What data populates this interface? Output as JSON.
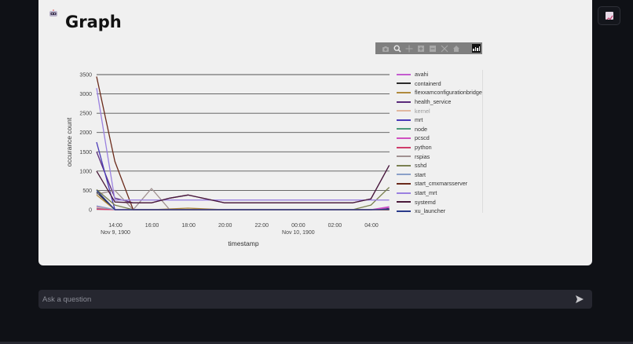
{
  "header": {
    "title": "Graph",
    "bot_icon": "robot-avatar-icon"
  },
  "modebar": {
    "buttons": [
      "camera-icon",
      "zoom-icon",
      "pan-icon",
      "zoom-in-icon",
      "zoom-out-icon",
      "autoscale-icon",
      "home-icon"
    ],
    "logo": "plotly-logo-icon"
  },
  "toolbar": {
    "chart_toggle_icon": "chart-icon"
  },
  "chat": {
    "placeholder": "Ask a question",
    "send_icon": "send-icon"
  },
  "chart_data": {
    "type": "line",
    "title": "",
    "xlabel": "timestamp",
    "ylabel": "occurance count",
    "ylim": [
      0,
      3500
    ],
    "yticks": [
      0,
      500,
      1000,
      1500,
      2000,
      2500,
      3000,
      3500
    ],
    "xticks": [
      {
        "label": "14:00",
        "sub": "Nov 9, 1900"
      },
      {
        "label": "16:00",
        "sub": ""
      },
      {
        "label": "18:00",
        "sub": ""
      },
      {
        "label": "20:00",
        "sub": ""
      },
      {
        "label": "22:00",
        "sub": ""
      },
      {
        "label": "00:00",
        "sub": "Nov 10, 1900"
      },
      {
        "label": "02:00",
        "sub": ""
      },
      {
        "label": "04:00",
        "sub": ""
      }
    ],
    "grid": true,
    "legend_position": "right",
    "x": [
      "13:00",
      "14:00",
      "15:00",
      "16:00",
      "17:00",
      "18:00",
      "20:00",
      "22:00",
      "00:00",
      "02:00",
      "03:00",
      "04:00",
      "05:00"
    ],
    "series": [
      {
        "name": "avahi",
        "color": "#c45ccf",
        "values": [
          80,
          0,
          0,
          0,
          0,
          0,
          0,
          0,
          0,
          0,
          0,
          0,
          80
        ]
      },
      {
        "name": "containerd",
        "color": "#2b2b2b",
        "values": [
          450,
          0,
          0,
          0,
          0,
          0,
          0,
          0,
          0,
          0,
          0,
          0,
          30
        ]
      },
      {
        "name": "flexxamconfigurationbridge",
        "color": "#b08a3c",
        "values": [
          380,
          0,
          0,
          0,
          20,
          40,
          0,
          0,
          0,
          0,
          0,
          0,
          20
        ]
      },
      {
        "name": "health_service",
        "color": "#5a2a7a",
        "values": [
          1500,
          300,
          180,
          180,
          300,
          380,
          180,
          180,
          180,
          180,
          180,
          280,
          1150
        ]
      },
      {
        "name": "kernel",
        "color": "#e0b8a0",
        "values": [
          60,
          0,
          0,
          0,
          0,
          0,
          0,
          0,
          0,
          0,
          0,
          0,
          0
        ]
      },
      {
        "name": "mrt",
        "color": "#4a3ab8",
        "values": [
          1750,
          0,
          0,
          0,
          0,
          0,
          0,
          0,
          0,
          0,
          0,
          0,
          20
        ]
      },
      {
        "name": "node",
        "color": "#4a9a7a",
        "values": [
          30,
          0,
          0,
          0,
          0,
          0,
          0,
          0,
          0,
          0,
          0,
          0,
          0
        ]
      },
      {
        "name": "pcscd",
        "color": "#d050c0",
        "values": [
          20,
          0,
          0,
          0,
          0,
          0,
          0,
          0,
          0,
          0,
          0,
          0,
          60
        ]
      },
      {
        "name": "python",
        "color": "#d03c6a",
        "values": [
          10,
          0,
          0,
          0,
          0,
          0,
          0,
          0,
          0,
          0,
          0,
          0,
          0
        ]
      },
      {
        "name": "rspias",
        "color": "#a09090",
        "values": [
          400,
          500,
          0,
          550,
          0,
          0,
          0,
          0,
          0,
          0,
          0,
          0,
          0
        ]
      },
      {
        "name": "sshd",
        "color": "#7a8050",
        "values": [
          520,
          120,
          0,
          0,
          0,
          0,
          0,
          0,
          0,
          0,
          0,
          120,
          580
        ]
      },
      {
        "name": "start",
        "color": "#8aa0c8",
        "values": [
          100,
          0,
          0,
          0,
          0,
          0,
          0,
          0,
          0,
          0,
          0,
          0,
          0
        ]
      },
      {
        "name": "start_cmxmarsserver",
        "color": "#6a2a1a",
        "values": [
          3450,
          1250,
          0,
          0,
          0,
          0,
          0,
          0,
          0,
          0,
          0,
          0,
          0
        ]
      },
      {
        "name": "start_mrt",
        "color": "#9a80e0",
        "values": [
          3150,
          250,
          250,
          250,
          250,
          250,
          250,
          250,
          250,
          250,
          250,
          250,
          250
        ]
      },
      {
        "name": "systemd",
        "color": "#4a1a3a",
        "values": [
          1000,
          200,
          180,
          180,
          300,
          380,
          180,
          180,
          180,
          180,
          180,
          280,
          1150
        ]
      },
      {
        "name": "xu_launcher",
        "color": "#2a3a8a",
        "values": [
          500,
          0,
          0,
          0,
          0,
          0,
          0,
          0,
          0,
          0,
          0,
          0,
          10
        ]
      }
    ]
  }
}
